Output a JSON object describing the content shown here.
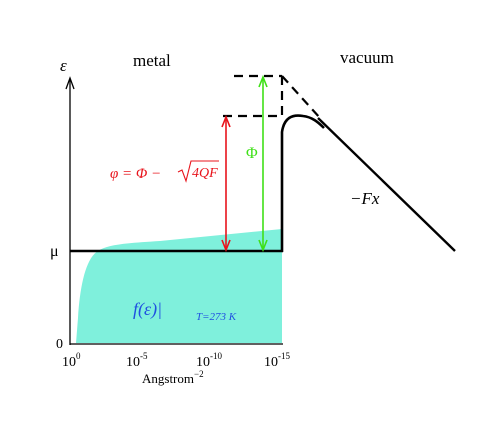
{
  "labels": {
    "energy_axis": "ε",
    "metal": "metal",
    "vacuum": "vacuum",
    "mu": "μ",
    "zero": "0",
    "phi_work": "Φ",
    "phi_eff_lhs": "φ = Φ − ",
    "phi_eff_radicand": "4QF",
    "field_potential": "−Fx",
    "fermi_dist_main": "f(ε)|",
    "fermi_dist_sub": "T=273 K",
    "x_axis_label": "Angstrom",
    "x_axis_exponent": "−2"
  },
  "x_ticks": [
    {
      "base": "10",
      "exp": "0"
    },
    {
      "base": "10",
      "exp": "-5"
    },
    {
      "base": "10",
      "exp": "-10"
    },
    {
      "base": "10",
      "exp": "-15"
    }
  ],
  "colors": {
    "axis": "#000000",
    "fermi_fill": "#7ff0dc",
    "phi_eff_arrow": "#e8141c",
    "phi_work_arrow": "#3fe018",
    "fermi_label": "#1f4fe0"
  }
}
